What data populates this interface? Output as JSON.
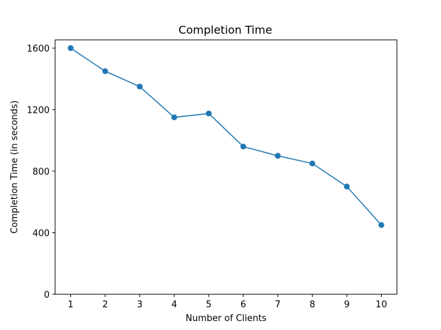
{
  "chart_data": {
    "type": "line",
    "title": "Completion Time",
    "xlabel": "Number of Clients",
    "ylabel": "Completion Time (in seconds)",
    "x": [
      1,
      2,
      3,
      4,
      5,
      6,
      7,
      8,
      9,
      10
    ],
    "series": [
      {
        "values": [
          1600,
          1450,
          1350,
          1150,
          1175,
          960,
          900,
          850,
          700,
          450
        ],
        "color": "#1f77b4",
        "marker": "circle"
      }
    ],
    "xticks": [
      1,
      2,
      3,
      4,
      5,
      6,
      7,
      8,
      9,
      10
    ],
    "yticks": [
      0,
      400,
      800,
      1200,
      1600
    ],
    "xlim": [
      0.55,
      10.45
    ],
    "ylim": [
      0,
      1600
    ],
    "grid": false,
    "legend": "none"
  }
}
